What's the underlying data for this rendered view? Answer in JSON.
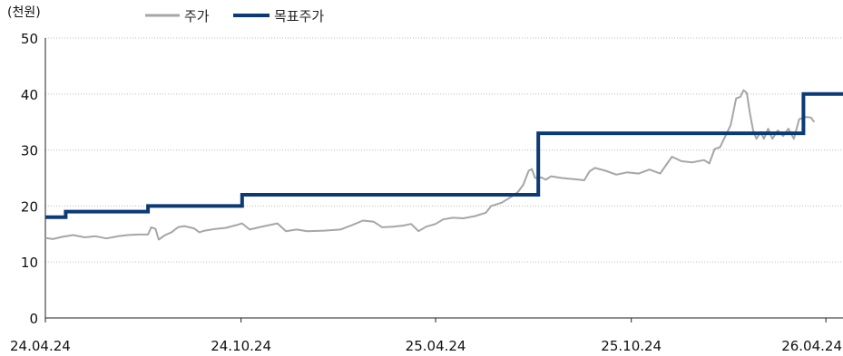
{
  "chart_data": {
    "type": "line",
    "unit_label": "(천원)",
    "ylim": [
      0,
      50
    ],
    "y_ticks": [
      0,
      10,
      20,
      30,
      40,
      50
    ],
    "x_range": [
      "2024-04-24",
      "2026-05-10"
    ],
    "x_ticks": [
      {
        "date": "2024-04-24",
        "label": "24.04.24"
      },
      {
        "date": "2024-10-24",
        "label": "24.10.24"
      },
      {
        "date": "2025-04-24",
        "label": "25.04.24"
      },
      {
        "date": "2025-10-24",
        "label": "25.10.24"
      },
      {
        "date": "2026-04-24",
        "label": "26.04.24"
      }
    ],
    "grid": true,
    "legend_position": "top-left",
    "colors": {
      "price": "#a6a6a6",
      "target": "#0b3a75",
      "grid": "#bdbdbd",
      "axis": "#222222"
    },
    "series": [
      {
        "name": "주가",
        "style": "line",
        "points": [
          [
            "2024-04-24",
            14.3
          ],
          [
            "2024-05-01",
            14.1
          ],
          [
            "2024-05-10",
            14.5
          ],
          [
            "2024-05-20",
            14.8
          ],
          [
            "2024-05-31",
            14.4
          ],
          [
            "2024-06-10",
            14.6
          ],
          [
            "2024-06-20",
            14.2
          ],
          [
            "2024-07-01",
            14.6
          ],
          [
            "2024-07-10",
            14.8
          ],
          [
            "2024-07-20",
            14.9
          ],
          [
            "2024-07-29",
            14.9
          ],
          [
            "2024-08-01",
            16.2
          ],
          [
            "2024-08-05",
            15.9
          ],
          [
            "2024-08-08",
            14.0
          ],
          [
            "2024-08-14",
            14.8
          ],
          [
            "2024-08-20",
            15.3
          ],
          [
            "2024-08-26",
            16.2
          ],
          [
            "2024-09-01",
            16.4
          ],
          [
            "2024-09-10",
            16.0
          ],
          [
            "2024-09-15",
            15.3
          ],
          [
            "2024-09-20",
            15.6
          ],
          [
            "2024-09-30",
            15.9
          ],
          [
            "2024-10-10",
            16.1
          ],
          [
            "2024-10-20",
            16.6
          ],
          [
            "2024-10-25",
            16.9
          ],
          [
            "2024-11-01",
            15.8
          ],
          [
            "2024-11-10",
            16.2
          ],
          [
            "2024-11-20",
            16.6
          ],
          [
            "2024-11-27",
            16.9
          ],
          [
            "2024-12-05",
            15.5
          ],
          [
            "2024-12-15",
            15.8
          ],
          [
            "2024-12-25",
            15.5
          ],
          [
            "2025-01-10",
            15.6
          ],
          [
            "2025-01-25",
            15.8
          ],
          [
            "2025-02-05",
            16.6
          ],
          [
            "2025-02-15",
            17.4
          ],
          [
            "2025-02-25",
            17.2
          ],
          [
            "2025-03-05",
            16.2
          ],
          [
            "2025-03-15",
            16.3
          ],
          [
            "2025-03-25",
            16.5
          ],
          [
            "2025-04-01",
            16.8
          ],
          [
            "2025-04-08",
            15.5
          ],
          [
            "2025-04-15",
            16.3
          ],
          [
            "2025-04-24",
            16.8
          ],
          [
            "2025-05-01",
            17.6
          ],
          [
            "2025-05-10",
            17.9
          ],
          [
            "2025-05-20",
            17.8
          ],
          [
            "2025-05-31",
            18.2
          ],
          [
            "2025-06-10",
            18.8
          ],
          [
            "2025-06-15",
            20.0
          ],
          [
            "2025-06-25",
            20.6
          ],
          [
            "2025-07-05",
            21.8
          ],
          [
            "2025-07-10",
            22.5
          ],
          [
            "2025-07-15",
            23.8
          ],
          [
            "2025-07-20",
            26.3
          ],
          [
            "2025-07-23",
            26.6
          ],
          [
            "2025-07-26",
            25.0
          ],
          [
            "2025-08-01",
            25.1
          ],
          [
            "2025-08-05",
            24.7
          ],
          [
            "2025-08-10",
            25.3
          ],
          [
            "2025-08-20",
            25.0
          ],
          [
            "2025-08-31",
            24.8
          ],
          [
            "2025-09-10",
            24.6
          ],
          [
            "2025-09-15",
            26.2
          ],
          [
            "2025-09-20",
            26.8
          ],
          [
            "2025-09-30",
            26.3
          ],
          [
            "2025-10-10",
            25.6
          ],
          [
            "2025-10-20",
            26.0
          ],
          [
            "2025-10-31",
            25.8
          ],
          [
            "2025-11-10",
            26.5
          ],
          [
            "2025-11-20",
            25.8
          ],
          [
            "2025-12-01",
            28.8
          ],
          [
            "2025-12-10",
            28.0
          ],
          [
            "2025-12-20",
            27.8
          ],
          [
            "2025-12-31",
            28.2
          ],
          [
            "2026-01-05",
            27.6
          ],
          [
            "2026-01-10",
            30.2
          ],
          [
            "2026-01-15",
            30.5
          ],
          [
            "2026-01-20",
            32.5
          ],
          [
            "2026-01-25",
            34.5
          ],
          [
            "2026-01-30",
            39.2
          ],
          [
            "2026-02-03",
            39.5
          ],
          [
            "2026-02-06",
            40.7
          ],
          [
            "2026-02-09",
            40.2
          ],
          [
            "2026-02-12",
            36.5
          ],
          [
            "2026-02-15",
            33.5
          ],
          [
            "2026-02-18",
            32.0
          ],
          [
            "2026-02-22",
            33.2
          ],
          [
            "2026-02-25",
            32.0
          ],
          [
            "2026-03-01",
            33.8
          ],
          [
            "2026-03-05",
            32.0
          ],
          [
            "2026-03-10",
            33.5
          ],
          [
            "2026-03-15",
            32.5
          ],
          [
            "2026-03-20",
            33.8
          ],
          [
            "2026-03-25",
            32.0
          ],
          [
            "2026-03-30",
            35.5
          ],
          [
            "2026-04-05",
            35.9
          ],
          [
            "2026-04-10",
            35.8
          ],
          [
            "2026-04-13",
            35.0
          ]
        ]
      },
      {
        "name": "목표주가",
        "style": "step",
        "points": [
          [
            "2024-04-24",
            18
          ],
          [
            "2024-05-13",
            19
          ],
          [
            "2024-07-29",
            20
          ],
          [
            "2024-10-25",
            22
          ],
          [
            "2025-07-29",
            33
          ],
          [
            "2026-04-03",
            40
          ],
          [
            "2026-05-10",
            40
          ]
        ]
      }
    ]
  }
}
